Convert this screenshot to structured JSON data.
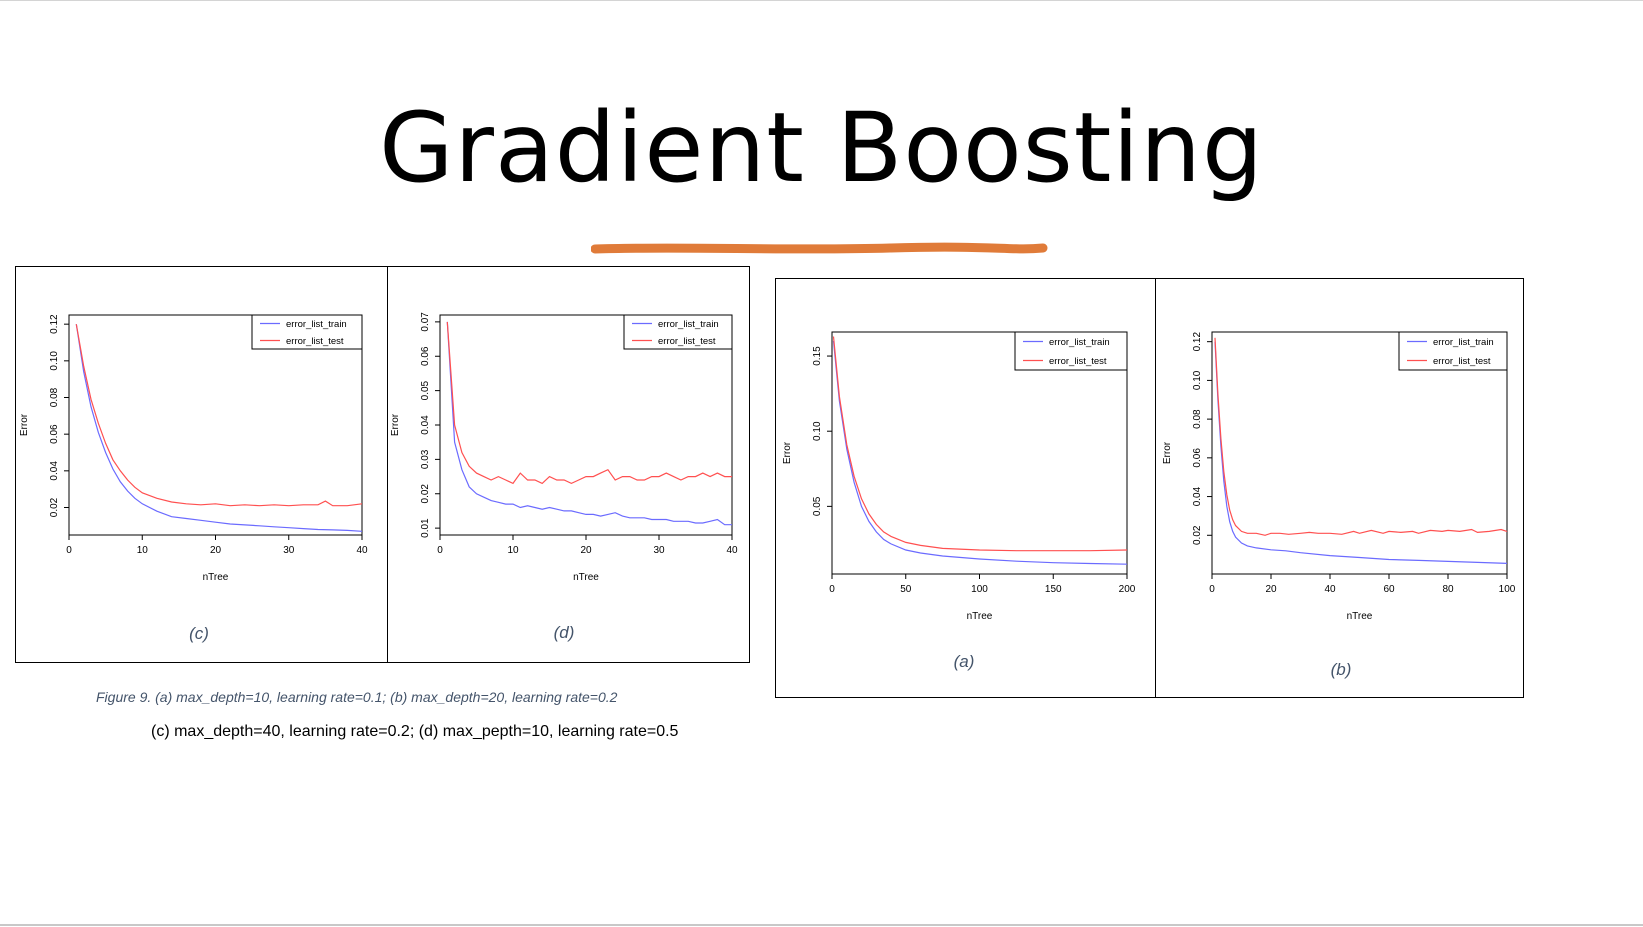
{
  "slide": {
    "title": "Gradient Boosting",
    "accent_color": "#e07b39"
  },
  "captions": {
    "figure": "Figure 9. (a) max_depth=10, learning rate=0.1; (b) max_depth=20, learning rate=0.2",
    "continuation": "(c) max_depth=40, learning rate=0.2; (d) max_pepth=10, learning rate=0.5"
  },
  "panels": {
    "c": {
      "label": "(c)"
    },
    "d": {
      "label": "(d)"
    },
    "a": {
      "label": "(a)"
    },
    "b": {
      "label": "(b)"
    }
  },
  "chart_data": [
    {
      "id": "c",
      "type": "line",
      "xlabel": "nTree",
      "ylabel": "Error",
      "xlim": [
        0,
        40
      ],
      "ylim": [
        0.005,
        0.125
      ],
      "xticks": [
        0,
        10,
        20,
        30,
        40
      ],
      "yticks": [
        0.02,
        0.04,
        0.06,
        0.08,
        0.1,
        0.12
      ],
      "ytick_labels": [
        "0.02",
        "0.04",
        "0.06",
        "0.08",
        "0.10",
        "0.12"
      ],
      "legend_position": "top-right",
      "grid": false,
      "series": [
        {
          "name": "error_list_train",
          "color": "#6b6bff",
          "x": [
            1,
            2,
            3,
            4,
            5,
            6,
            7,
            8,
            9,
            10,
            12,
            14,
            16,
            18,
            20,
            22,
            24,
            26,
            28,
            30,
            32,
            34,
            36,
            38,
            40
          ],
          "y": [
            0.12,
            0.094,
            0.075,
            0.061,
            0.05,
            0.041,
            0.034,
            0.029,
            0.025,
            0.022,
            0.018,
            0.015,
            0.014,
            0.013,
            0.012,
            0.011,
            0.0105,
            0.01,
            0.0095,
            0.009,
            0.0085,
            0.008,
            0.0078,
            0.0075,
            0.007
          ]
        },
        {
          "name": "error_list_test",
          "color": "#ff5050",
          "x": [
            1,
            2,
            3,
            4,
            5,
            6,
            7,
            8,
            9,
            10,
            12,
            14,
            16,
            18,
            20,
            22,
            24,
            26,
            28,
            30,
            32,
            34,
            35,
            36,
            38,
            40
          ],
          "y": [
            0.12,
            0.097,
            0.079,
            0.066,
            0.055,
            0.046,
            0.04,
            0.035,
            0.031,
            0.028,
            0.025,
            0.023,
            0.022,
            0.0215,
            0.022,
            0.021,
            0.0215,
            0.021,
            0.0215,
            0.021,
            0.0215,
            0.0215,
            0.0235,
            0.021,
            0.021,
            0.022
          ]
        }
      ]
    },
    {
      "id": "d",
      "type": "line",
      "xlabel": "nTree",
      "ylabel": "Error",
      "xlim": [
        0,
        40
      ],
      "ylim": [
        0.008,
        0.072
      ],
      "xticks": [
        0,
        10,
        20,
        30,
        40
      ],
      "yticks": [
        0.01,
        0.02,
        0.03,
        0.04,
        0.05,
        0.06,
        0.07
      ],
      "ytick_labels": [
        "0.01",
        "0.02",
        "0.03",
        "0.04",
        "0.05",
        "0.06",
        "0.07"
      ],
      "legend_position": "top-right",
      "grid": false,
      "series": [
        {
          "name": "error_list_train",
          "color": "#6b6bff",
          "x": [
            1,
            2,
            3,
            4,
            5,
            6,
            7,
            8,
            9,
            10,
            11,
            12,
            13,
            14,
            15,
            16,
            17,
            18,
            19,
            20,
            21,
            22,
            23,
            24,
            25,
            26,
            27,
            28,
            29,
            30,
            31,
            32,
            33,
            34,
            35,
            36,
            37,
            38,
            39,
            40
          ],
          "y": [
            0.07,
            0.035,
            0.027,
            0.022,
            0.02,
            0.019,
            0.018,
            0.0175,
            0.017,
            0.017,
            0.016,
            0.0165,
            0.016,
            0.0155,
            0.016,
            0.0155,
            0.015,
            0.015,
            0.0145,
            0.014,
            0.014,
            0.0135,
            0.014,
            0.0145,
            0.0135,
            0.013,
            0.013,
            0.013,
            0.0125,
            0.0125,
            0.0125,
            0.012,
            0.012,
            0.012,
            0.0115,
            0.0115,
            0.012,
            0.0125,
            0.011,
            0.011
          ]
        },
        {
          "name": "error_list_test",
          "color": "#ff5050",
          "x": [
            1,
            2,
            3,
            4,
            5,
            6,
            7,
            8,
            9,
            10,
            11,
            12,
            13,
            14,
            15,
            16,
            17,
            18,
            19,
            20,
            21,
            22,
            23,
            24,
            25,
            26,
            27,
            28,
            29,
            30,
            31,
            32,
            33,
            34,
            35,
            36,
            37,
            38,
            39,
            40
          ],
          "y": [
            0.07,
            0.04,
            0.032,
            0.028,
            0.026,
            0.025,
            0.024,
            0.025,
            0.024,
            0.023,
            0.026,
            0.024,
            0.024,
            0.023,
            0.025,
            0.024,
            0.024,
            0.023,
            0.024,
            0.025,
            0.025,
            0.026,
            0.027,
            0.024,
            0.025,
            0.025,
            0.024,
            0.024,
            0.025,
            0.025,
            0.026,
            0.025,
            0.024,
            0.025,
            0.025,
            0.026,
            0.025,
            0.026,
            0.025,
            0.025
          ]
        }
      ]
    },
    {
      "id": "a",
      "type": "line",
      "xlabel": "nTree",
      "ylabel": "Error",
      "xlim": [
        0,
        200
      ],
      "ylim": [
        0.005,
        0.166
      ],
      "xticks": [
        0,
        50,
        100,
        150,
        200
      ],
      "yticks": [
        0.05,
        0.1,
        0.15
      ],
      "ytick_labels": [
        "0.05",
        "0.10",
        "0.15"
      ],
      "legend_position": "top-right",
      "grid": false,
      "series": [
        {
          "name": "error_list_train",
          "color": "#6b6bff",
          "x": [
            1,
            5,
            10,
            15,
            20,
            25,
            30,
            35,
            40,
            50,
            60,
            75,
            100,
            125,
            150,
            175,
            200
          ],
          "y": [
            0.16,
            0.12,
            0.088,
            0.066,
            0.05,
            0.04,
            0.033,
            0.028,
            0.025,
            0.021,
            0.019,
            0.017,
            0.015,
            0.0135,
            0.0125,
            0.012,
            0.0115
          ]
        },
        {
          "name": "error_list_test",
          "color": "#ff5050",
          "x": [
            1,
            5,
            10,
            15,
            20,
            25,
            30,
            35,
            40,
            50,
            60,
            75,
            100,
            125,
            150,
            175,
            200
          ],
          "y": [
            0.163,
            0.123,
            0.091,
            0.07,
            0.055,
            0.045,
            0.038,
            0.033,
            0.03,
            0.026,
            0.024,
            0.022,
            0.021,
            0.0205,
            0.0205,
            0.0205,
            0.021
          ]
        }
      ]
    },
    {
      "id": "b",
      "type": "line",
      "xlabel": "nTree",
      "ylabel": "Error",
      "xlim": [
        0,
        100
      ],
      "ylim": [
        0.0,
        0.125
      ],
      "xticks": [
        0,
        20,
        40,
        60,
        80,
        100
      ],
      "yticks": [
        0.02,
        0.04,
        0.06,
        0.08,
        0.1,
        0.12
      ],
      "ytick_labels": [
        "0.02",
        "0.04",
        "0.06",
        "0.08",
        "0.10",
        "0.12"
      ],
      "legend_position": "top-right",
      "grid": false,
      "series": [
        {
          "name": "error_list_train",
          "color": "#6b6bff",
          "x": [
            1,
            2,
            3,
            4,
            5,
            6,
            7,
            8,
            10,
            12,
            15,
            20,
            25,
            30,
            40,
            50,
            60,
            70,
            80,
            90,
            100
          ],
          "y": [
            0.12,
            0.09,
            0.066,
            0.048,
            0.035,
            0.027,
            0.022,
            0.019,
            0.016,
            0.0145,
            0.0135,
            0.0125,
            0.012,
            0.011,
            0.0095,
            0.0085,
            0.0075,
            0.007,
            0.0065,
            0.006,
            0.0055
          ]
        },
        {
          "name": "error_list_test",
          "color": "#ff5050",
          "x": [
            1,
            2,
            3,
            4,
            5,
            6,
            7,
            8,
            10,
            12,
            15,
            18,
            20,
            23,
            26,
            30,
            33,
            36,
            40,
            44,
            48,
            50,
            54,
            58,
            60,
            64,
            68,
            70,
            74,
            78,
            80,
            84,
            88,
            90,
            94,
            98,
            100
          ],
          "y": [
            0.122,
            0.093,
            0.07,
            0.053,
            0.041,
            0.033,
            0.028,
            0.025,
            0.022,
            0.021,
            0.021,
            0.02,
            0.021,
            0.021,
            0.0205,
            0.021,
            0.0215,
            0.021,
            0.021,
            0.0205,
            0.022,
            0.021,
            0.0225,
            0.021,
            0.022,
            0.0215,
            0.022,
            0.021,
            0.0225,
            0.022,
            0.0225,
            0.022,
            0.023,
            0.0215,
            0.022,
            0.023,
            0.022
          ]
        }
      ]
    }
  ]
}
